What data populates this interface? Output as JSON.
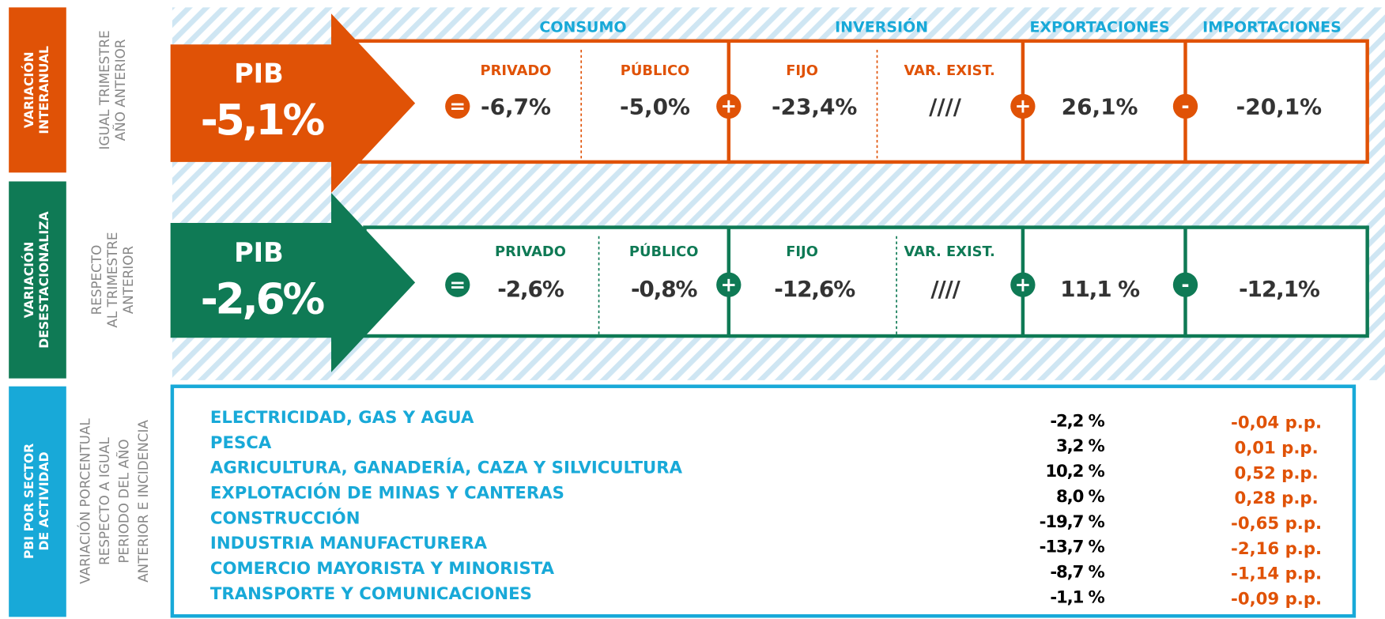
{
  "headers": {
    "consumo": "CONSUMO",
    "inversion": "INVERSIÓN",
    "exportaciones": "EXPORTACIONES",
    "importaciones": "IMPORTACIONES"
  },
  "rows": [
    {
      "side_label": [
        "VARIACIÓN",
        "INTERANUAL"
      ],
      "note": [
        "IGUAL TRIMESTRE",
        "AÑO ANTERIOR"
      ],
      "pib_label": "PIB",
      "pib_value": "-5,1%",
      "privado_label": "PRIVADO",
      "privado": "-6,7%",
      "publico_label": "PÚBLICO",
      "publico": "-5,0%",
      "fijo_label": "FIJO",
      "fijo": "-23,4%",
      "var_exist_label": "VAR. EXIST.",
      "var_exist": "////",
      "exportaciones": "26,1%",
      "importaciones": "-20,1%",
      "operators": [
        "=",
        "+",
        "+",
        "-"
      ]
    },
    {
      "side_label": [
        "VARIACIÓN",
        "DESESTACIONALIZA"
      ],
      "note": [
        "RESPECTO",
        "AL TRIMESTRE",
        "ANTERIOR"
      ],
      "pib_label": "PIB",
      "pib_value": "-2,6%",
      "privado_label": "PRIVADO",
      "privado": "-2,6%",
      "publico_label": "PÚBLICO",
      "publico": "-0,8%",
      "fijo_label": "FIJO",
      "fijo": "-12,6%",
      "var_exist_label": "VAR. EXIST.",
      "var_exist": "////",
      "exportaciones": "11,1 %",
      "importaciones": "-12,1%",
      "operators": [
        "=",
        "+",
        "+",
        "-"
      ]
    }
  ],
  "sectors": {
    "side_label": [
      "PBI POR SECTOR",
      "DE ACTIVIDAD"
    ],
    "note": [
      "VARIACIÓN PORCENTUAL",
      "RESPECTO A IGUAL",
      "PERIODO DEL AÑO",
      "ANTERIOR E INCIDENCIA"
    ],
    "rows": [
      [
        "ELECTRICIDAD, GAS Y AGUA",
        "-2,2 %",
        "-0,04 p.p."
      ],
      [
        "PESCA",
        "3,2 %",
        "0,01 p.p."
      ],
      [
        "AGRICULTURA, GANADERÍA, CAZA Y SILVICULTURA",
        "10,2 %",
        "0,52 p.p."
      ],
      [
        "EXPLOTACIÓN DE MINAS Y CANTERAS",
        "8,0 %",
        "0,28 p.p."
      ],
      [
        "CONSTRUCCIÓN",
        "-19,7 %",
        "-0,65 p.p."
      ],
      [
        "INDUSTRIA MANUFACTURERA",
        "-13,7 %",
        "-2,16 p.p."
      ],
      [
        "COMERCIO MAYORISTA Y MINORISTA",
        "-8,7 %",
        "-1,14 p.p."
      ],
      [
        "TRANSPORTE Y COMUNICACIONES",
        "-1,1 %",
        "-0,09 p.p."
      ]
    ]
  }
}
